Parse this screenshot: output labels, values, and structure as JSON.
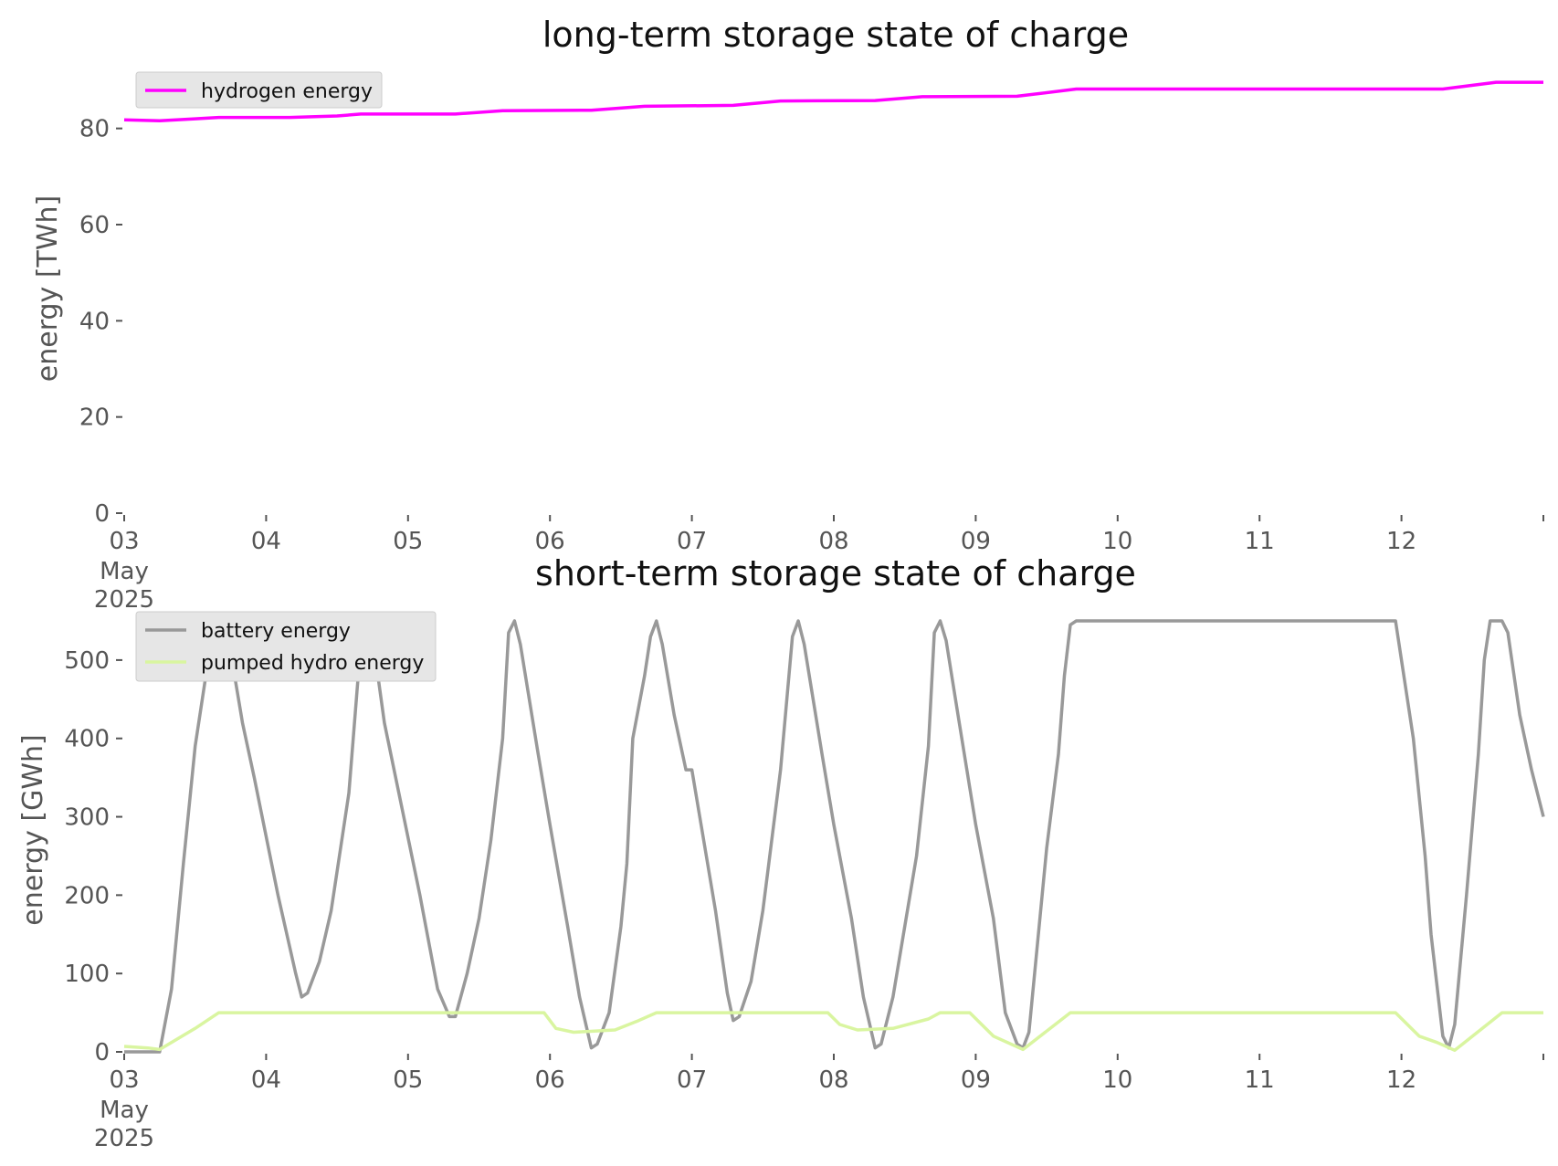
{
  "charts": [
    {
      "type": "line",
      "title": "long-term storage state of charge",
      "ylabel": "energy [TWh]",
      "ylim": [
        0,
        90
      ],
      "yticks": [
        0,
        20,
        40,
        60,
        80
      ],
      "x_range": [
        "2025-05-03",
        "2025-05-13"
      ],
      "x_ticks": [
        "03",
        "04",
        "05",
        "06",
        "07",
        "08",
        "09",
        "10",
        "11",
        "12"
      ],
      "x_first_tick_extra": [
        "May",
        "2025"
      ],
      "legend_placement": "top-left",
      "series": [
        {
          "name": "hydrogen energy",
          "color": "#ff00ff",
          "points": [
            [
              "2025-05-03 00:00",
              81.8
            ],
            [
              "2025-05-03 06:00",
              81.6
            ],
            [
              "2025-05-03 12:00",
              82.0
            ],
            [
              "2025-05-03 16:00",
              82.3
            ],
            [
              "2025-05-04 04:00",
              82.3
            ],
            [
              "2025-05-04 12:00",
              82.6
            ],
            [
              "2025-05-04 16:00",
              83.0
            ],
            [
              "2025-05-05 08:00",
              83.0
            ],
            [
              "2025-05-05 16:00",
              83.7
            ],
            [
              "2025-05-06 07:00",
              83.8
            ],
            [
              "2025-05-06 16:00",
              84.6
            ],
            [
              "2025-05-07 07:00",
              84.8
            ],
            [
              "2025-05-07 15:00",
              85.7
            ],
            [
              "2025-05-08 07:00",
              85.8
            ],
            [
              "2025-05-08 15:00",
              86.6
            ],
            [
              "2025-05-09 07:00",
              86.7
            ],
            [
              "2025-05-09 17:00",
              88.2
            ],
            [
              "2025-05-12 07:00",
              88.2
            ],
            [
              "2025-05-12 16:00",
              89.6
            ],
            [
              "2025-05-13 00:00",
              89.6
            ]
          ]
        }
      ]
    },
    {
      "type": "line",
      "title": "short-term storage state of charge",
      "ylabel": "energy [GWh]",
      "ylim": [
        0,
        550
      ],
      "yticks": [
        0,
        100,
        200,
        300,
        400,
        500
      ],
      "x_range": [
        "2025-05-03",
        "2025-05-13"
      ],
      "x_ticks": [
        "03",
        "04",
        "05",
        "06",
        "07",
        "08",
        "09",
        "10",
        "11",
        "12"
      ],
      "x_first_tick_extra": [
        "May",
        "2025"
      ],
      "legend_placement": "top-left",
      "series": [
        {
          "name": "battery energy",
          "color": "#999999",
          "points": [
            [
              "2025-05-03 00:00",
              0
            ],
            [
              "2025-05-03 06:00",
              0
            ],
            [
              "2025-05-03 08:00",
              80
            ],
            [
              "2025-05-03 10:00",
              240
            ],
            [
              "2025-05-03 12:00",
              390
            ],
            [
              "2025-05-03 14:00",
              490
            ],
            [
              "2025-05-03 16:00",
              550
            ],
            [
              "2025-05-03 18:00",
              510
            ],
            [
              "2025-05-03 20:00",
              420
            ],
            [
              "2025-05-03 22:00",
              350
            ],
            [
              "2025-05-04 02:00",
              200
            ],
            [
              "2025-05-04 05:00",
              100
            ],
            [
              "2025-05-04 06:00",
              70
            ],
            [
              "2025-05-04 07:00",
              75
            ],
            [
              "2025-05-04 09:00",
              115
            ],
            [
              "2025-05-04 11:00",
              180
            ],
            [
              "2025-05-04 14:00",
              330
            ],
            [
              "2025-05-04 16:00",
              520
            ],
            [
              "2025-05-04 17:00",
              550
            ],
            [
              "2025-05-04 18:00",
              530
            ],
            [
              "2025-05-04 20:00",
              420
            ],
            [
              "2025-05-05 02:00",
              200
            ],
            [
              "2025-05-05 05:00",
              80
            ],
            [
              "2025-05-05 07:00",
              45
            ],
            [
              "2025-05-05 08:00",
              45
            ],
            [
              "2025-05-05 10:00",
              100
            ],
            [
              "2025-05-05 12:00",
              170
            ],
            [
              "2025-05-05 14:00",
              270
            ],
            [
              "2025-05-05 16:00",
              400
            ],
            [
              "2025-05-05 17:00",
              535
            ],
            [
              "2025-05-05 18:00",
              550
            ],
            [
              "2025-05-05 19:00",
              520
            ],
            [
              "2025-05-05 22:00",
              380
            ],
            [
              "2025-05-06 00:00",
              290
            ],
            [
              "2025-05-06 03:00",
              160
            ],
            [
              "2025-05-06 05:00",
              70
            ],
            [
              "2025-05-06 07:00",
              5
            ],
            [
              "2025-05-06 08:00",
              10
            ],
            [
              "2025-05-06 10:00",
              50
            ],
            [
              "2025-05-06 12:00",
              160
            ],
            [
              "2025-05-06 13:00",
              240
            ],
            [
              "2025-05-06 14:00",
              400
            ],
            [
              "2025-05-06 16:00",
              480
            ],
            [
              "2025-05-06 17:00",
              530
            ],
            [
              "2025-05-06 18:00",
              550
            ],
            [
              "2025-05-06 19:00",
              520
            ],
            [
              "2025-05-06 21:00",
              430
            ],
            [
              "2025-05-06 23:00",
              360
            ],
            [
              "2025-05-07 00:00",
              360
            ],
            [
              "2025-05-07 04:00",
              180
            ],
            [
              "2025-05-07 06:00",
              75
            ],
            [
              "2025-05-07 07:00",
              40
            ],
            [
              "2025-05-07 08:00",
              45
            ],
            [
              "2025-05-07 10:00",
              90
            ],
            [
              "2025-05-07 12:00",
              180
            ],
            [
              "2025-05-07 13:00",
              240
            ],
            [
              "2025-05-07 15:00",
              360
            ],
            [
              "2025-05-07 17:00",
              530
            ],
            [
              "2025-05-07 18:00",
              550
            ],
            [
              "2025-05-07 19:00",
              520
            ],
            [
              "2025-05-07 22:00",
              380
            ],
            [
              "2025-05-08 00:00",
              290
            ],
            [
              "2025-05-08 03:00",
              170
            ],
            [
              "2025-05-08 05:00",
              70
            ],
            [
              "2025-05-08 07:00",
              5
            ],
            [
              "2025-05-08 08:00",
              10
            ],
            [
              "2025-05-08 10:00",
              70
            ],
            [
              "2025-05-08 12:00",
              160
            ],
            [
              "2025-05-08 14:00",
              250
            ],
            [
              "2025-05-08 16:00",
              390
            ],
            [
              "2025-05-08 17:00",
              535
            ],
            [
              "2025-05-08 18:00",
              550
            ],
            [
              "2025-05-08 19:00",
              525
            ],
            [
              "2025-05-08 21:00",
              430
            ],
            [
              "2025-05-09 00:00",
              290
            ],
            [
              "2025-05-09 03:00",
              170
            ],
            [
              "2025-05-09 05:00",
              50
            ],
            [
              "2025-05-09 07:00",
              10
            ],
            [
              "2025-05-09 08:00",
              5
            ],
            [
              "2025-05-09 09:00",
              25
            ],
            [
              "2025-05-09 12:00",
              260
            ],
            [
              "2025-05-09 14:00",
              380
            ],
            [
              "2025-05-09 15:00",
              480
            ],
            [
              "2025-05-09 16:00",
              545
            ],
            [
              "2025-05-09 17:00",
              550
            ],
            [
              "2025-05-11 23:00",
              550
            ],
            [
              "2025-05-12 02:00",
              400
            ],
            [
              "2025-05-12 04:00",
              250
            ],
            [
              "2025-05-12 05:00",
              150
            ],
            [
              "2025-05-12 07:00",
              20
            ],
            [
              "2025-05-12 08:00",
              5
            ],
            [
              "2025-05-12 09:00",
              35
            ],
            [
              "2025-05-12 11:00",
              200
            ],
            [
              "2025-05-12 13:00",
              380
            ],
            [
              "2025-05-12 14:00",
              500
            ],
            [
              "2025-05-12 15:00",
              550
            ],
            [
              "2025-05-12 17:00",
              550
            ],
            [
              "2025-05-12 18:00",
              535
            ],
            [
              "2025-05-12 20:00",
              430
            ],
            [
              "2025-05-12 22:00",
              360
            ],
            [
              "2025-05-13 00:00",
              300
            ]
          ]
        },
        {
          "name": "pumped hydro energy",
          "color": "#d9f5a0",
          "points": [
            [
              "2025-05-03 00:00",
              7
            ],
            [
              "2025-05-03 04:00",
              5
            ],
            [
              "2025-05-03 06:00",
              3
            ],
            [
              "2025-05-03 12:00",
              30
            ],
            [
              "2025-05-03 16:00",
              50
            ],
            [
              "2025-05-05 23:00",
              50
            ],
            [
              "2025-05-06 01:00",
              30
            ],
            [
              "2025-05-06 04:00",
              25
            ],
            [
              "2025-05-06 11:00",
              28
            ],
            [
              "2025-05-06 15:00",
              40
            ],
            [
              "2025-05-06 18:00",
              50
            ],
            [
              "2025-05-07 23:00",
              50
            ],
            [
              "2025-05-08 01:00",
              35
            ],
            [
              "2025-05-08 04:00",
              28
            ],
            [
              "2025-05-08 10:00",
              30
            ],
            [
              "2025-05-08 16:00",
              42
            ],
            [
              "2025-05-08 18:00",
              50
            ],
            [
              "2025-05-08 23:00",
              50
            ],
            [
              "2025-05-09 03:00",
              20
            ],
            [
              "2025-05-09 08:00",
              3
            ],
            [
              "2025-05-09 16:00",
              50
            ],
            [
              "2025-05-11 23:00",
              50
            ],
            [
              "2025-05-12 03:00",
              20
            ],
            [
              "2025-05-12 06:00",
              12
            ],
            [
              "2025-05-12 09:00",
              2
            ],
            [
              "2025-05-12 17:00",
              50
            ],
            [
              "2025-05-13 00:00",
              50
            ]
          ]
        }
      ]
    }
  ]
}
